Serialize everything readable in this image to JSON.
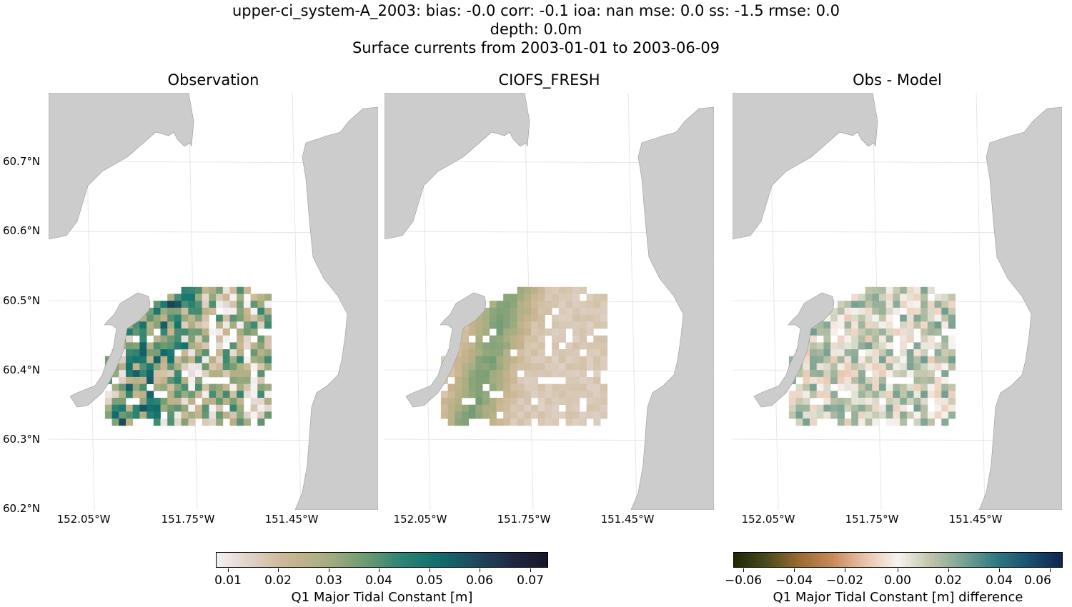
{
  "figure": {
    "title_line1": "upper-ci_system-A_2003: bias: -0.0  corr: -0.1  ioa: nan  mse: 0.0  ss: -1.5  rmse: 0.0",
    "title_line2": "depth: 0.0m",
    "title_line3": "Surface currents from 2003-01-01 to 2003-06-09"
  },
  "panels": [
    {
      "title": "Observation",
      "colormap": "tempo"
    },
    {
      "title": "CIOFS_FRESH",
      "colormap": "tempo"
    },
    {
      "title": "Obs - Model",
      "colormap": "diff"
    }
  ],
  "map": {
    "land_color": "#cccccc",
    "latitude_labels": [
      "60.7°N",
      "60.6°N",
      "60.5°N",
      "60.4°N",
      "60.3°N",
      "60.2°N"
    ],
    "longitude_labels": [
      "152.05°W",
      "151.75°W",
      "151.45°W"
    ]
  },
  "colorbars": [
    {
      "ticks": [
        "0.01",
        "0.02",
        "0.03",
        "0.04",
        "0.05",
        "0.06",
        "0.07"
      ],
      "label": "Q1 Major Tidal Constant [m]",
      "range": [
        0.007,
        0.073
      ]
    },
    {
      "ticks": [
        "−0.06",
        "−0.04",
        "−0.02",
        "0.00",
        "0.02",
        "0.04",
        "0.06"
      ],
      "label": "Q1 Major Tidal Constant [m] difference",
      "range": [
        -0.065,
        0.065
      ]
    }
  ]
}
